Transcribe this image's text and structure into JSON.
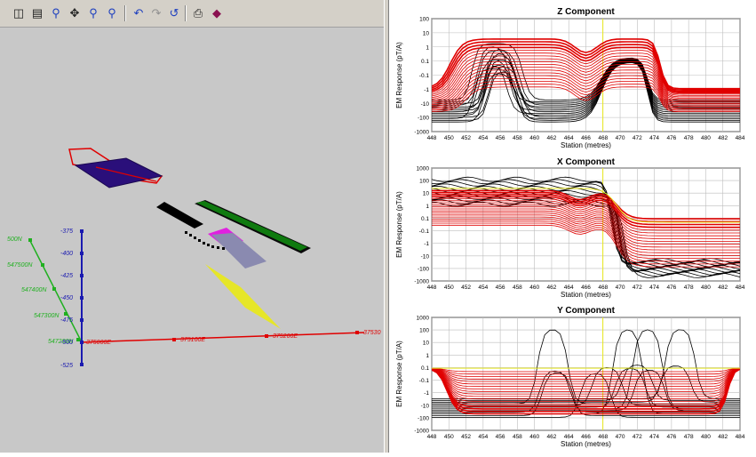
{
  "toolbar": {
    "icons": [
      "new-page-icon",
      "ruler-icon",
      "zoom-icon",
      "pan-icon",
      "zoom-in-icon",
      "zoom-out-icon",
      "rotate-left-icon",
      "rotate-view-icon",
      "reset-view-icon",
      "print-icon",
      "export-icon"
    ]
  },
  "scene": {
    "depth_labels": [
      "-375",
      "-400",
      "-425",
      "-450",
      "-475",
      "-500",
      "-525"
    ],
    "north_labels": [
      "500N",
      "547500N",
      "547400N",
      "547300N",
      "547200N"
    ],
    "east_labels": [
      "375000E",
      "375100E",
      "375200E",
      "37530"
    ]
  },
  "colors": {
    "red": "#e00000",
    "black": "#000000",
    "yellow": "#e8e820",
    "green": "#20b020",
    "blue": "#1a1ab0"
  },
  "charts": [
    {
      "title": "Z Component",
      "ylabel": "EM Response (pT/A)",
      "xlabel": "Station (metres)",
      "yticks": [
        "100",
        "10",
        "1",
        "0.1",
        "-0.1",
        "-1",
        "-10",
        "-100",
        "-1000"
      ],
      "xticks": [
        "448",
        "450",
        "452",
        "454",
        "456",
        "458",
        "460",
        "462",
        "464",
        "466",
        "468",
        "470",
        "472",
        "474",
        "476",
        "478",
        "480",
        "482",
        "484"
      ]
    },
    {
      "title": "X Component",
      "ylabel": "EM Response (pT/A)",
      "xlabel": "Station (metres)",
      "yticks": [
        "1000",
        "100",
        "10",
        "1",
        "0.1",
        "-0.1",
        "-1",
        "-10",
        "-100",
        "-1000"
      ],
      "xticks": [
        "448",
        "450",
        "452",
        "454",
        "456",
        "458",
        "460",
        "462",
        "464",
        "466",
        "468",
        "470",
        "472",
        "474",
        "476",
        "478",
        "480",
        "482",
        "484"
      ]
    },
    {
      "title": "Y Component",
      "ylabel": "EM Response (pT/A)",
      "xlabel": "Station (metres)",
      "yticks": [
        "1000",
        "100",
        "10",
        "1",
        "0.1",
        "-0.1",
        "-1",
        "-10",
        "-100",
        "-1000"
      ],
      "xticks": [
        "448",
        "450",
        "452",
        "454",
        "456",
        "458",
        "460",
        "462",
        "464",
        "466",
        "468",
        "470",
        "472",
        "474",
        "476",
        "478",
        "480",
        "482",
        "484"
      ]
    }
  ]
}
